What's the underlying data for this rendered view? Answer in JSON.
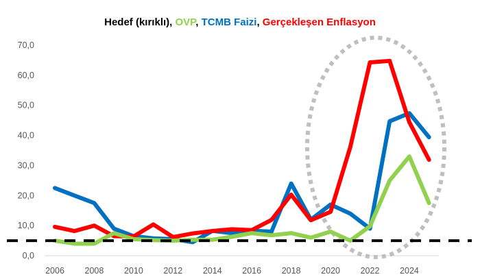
{
  "chart_data": {
    "type": "line",
    "title_parts": [
      {
        "text": "Hedef (kırıklı)",
        "color": "#000000"
      },
      {
        "text": ", ",
        "color": "#000000"
      },
      {
        "text": "OVP",
        "color": "#92d050"
      },
      {
        "text": ", ",
        "color": "#000000"
      },
      {
        "text": "TCMB Faizi",
        "color": "#0070c0"
      },
      {
        "text": ", ",
        "color": "#000000"
      },
      {
        "text": "Gerçekleşen Enflasyon",
        "color": "#ff0000"
      }
    ],
    "x": [
      2006,
      2007,
      2008,
      2009,
      2010,
      2011,
      2012,
      2013,
      2014,
      2015,
      2016,
      2017,
      2018,
      2019,
      2020,
      2021,
      2022,
      2023,
      2024,
      2025
    ],
    "x_ticks": [
      "2006",
      "2008",
      "2010",
      "2012",
      "2014",
      "2016",
      "2018",
      "2020",
      "2022",
      "2024"
    ],
    "y_ticks": [
      "0,0",
      "10,0",
      "20,0",
      "30,0",
      "40,0",
      "50,0",
      "60,0",
      "70,0"
    ],
    "ylim": [
      0,
      70
    ],
    "grid": false,
    "series": [
      {
        "name": "TCMB Faizi",
        "color": "#0070c0",
        "values": [
          22.5,
          20,
          17.5,
          9,
          6.5,
          5.75,
          5.5,
          4.5,
          8.25,
          7.5,
          8.3,
          8,
          24,
          12,
          17,
          14,
          9,
          44.7,
          47.4,
          39.4
        ]
      },
      {
        "name": "Gerçekleşen Enflasyon",
        "color": "#ff0000",
        "values": [
          9.6,
          8.2,
          10,
          6.5,
          6.4,
          10.4,
          6.2,
          7.4,
          8.2,
          8.8,
          8.5,
          11.9,
          20.3,
          11.8,
          14.6,
          36.1,
          64.3,
          64.8,
          44.4,
          31.9
        ]
      },
      {
        "name": "OVP",
        "color": "#92d050",
        "values": [
          5,
          4,
          4,
          7.5,
          5.5,
          5.2,
          5,
          5.3,
          5.3,
          6.3,
          7.5,
          6.8,
          7.5,
          6,
          8,
          5,
          9.8,
          25,
          33,
          17.5
        ]
      },
      {
        "name": "Hedef (kırıklı)",
        "color": "#000000",
        "dashed": true,
        "values": [
          5,
          5,
          5,
          5,
          5,
          5,
          5,
          5,
          5,
          5,
          5,
          5,
          5,
          5,
          5,
          5,
          5,
          5,
          5,
          5
        ]
      }
    ],
    "annotation": {
      "shape": "dotted-ellipse",
      "color": "#bfbfbf",
      "highlights_years": [
        2021,
        2025
      ]
    }
  }
}
